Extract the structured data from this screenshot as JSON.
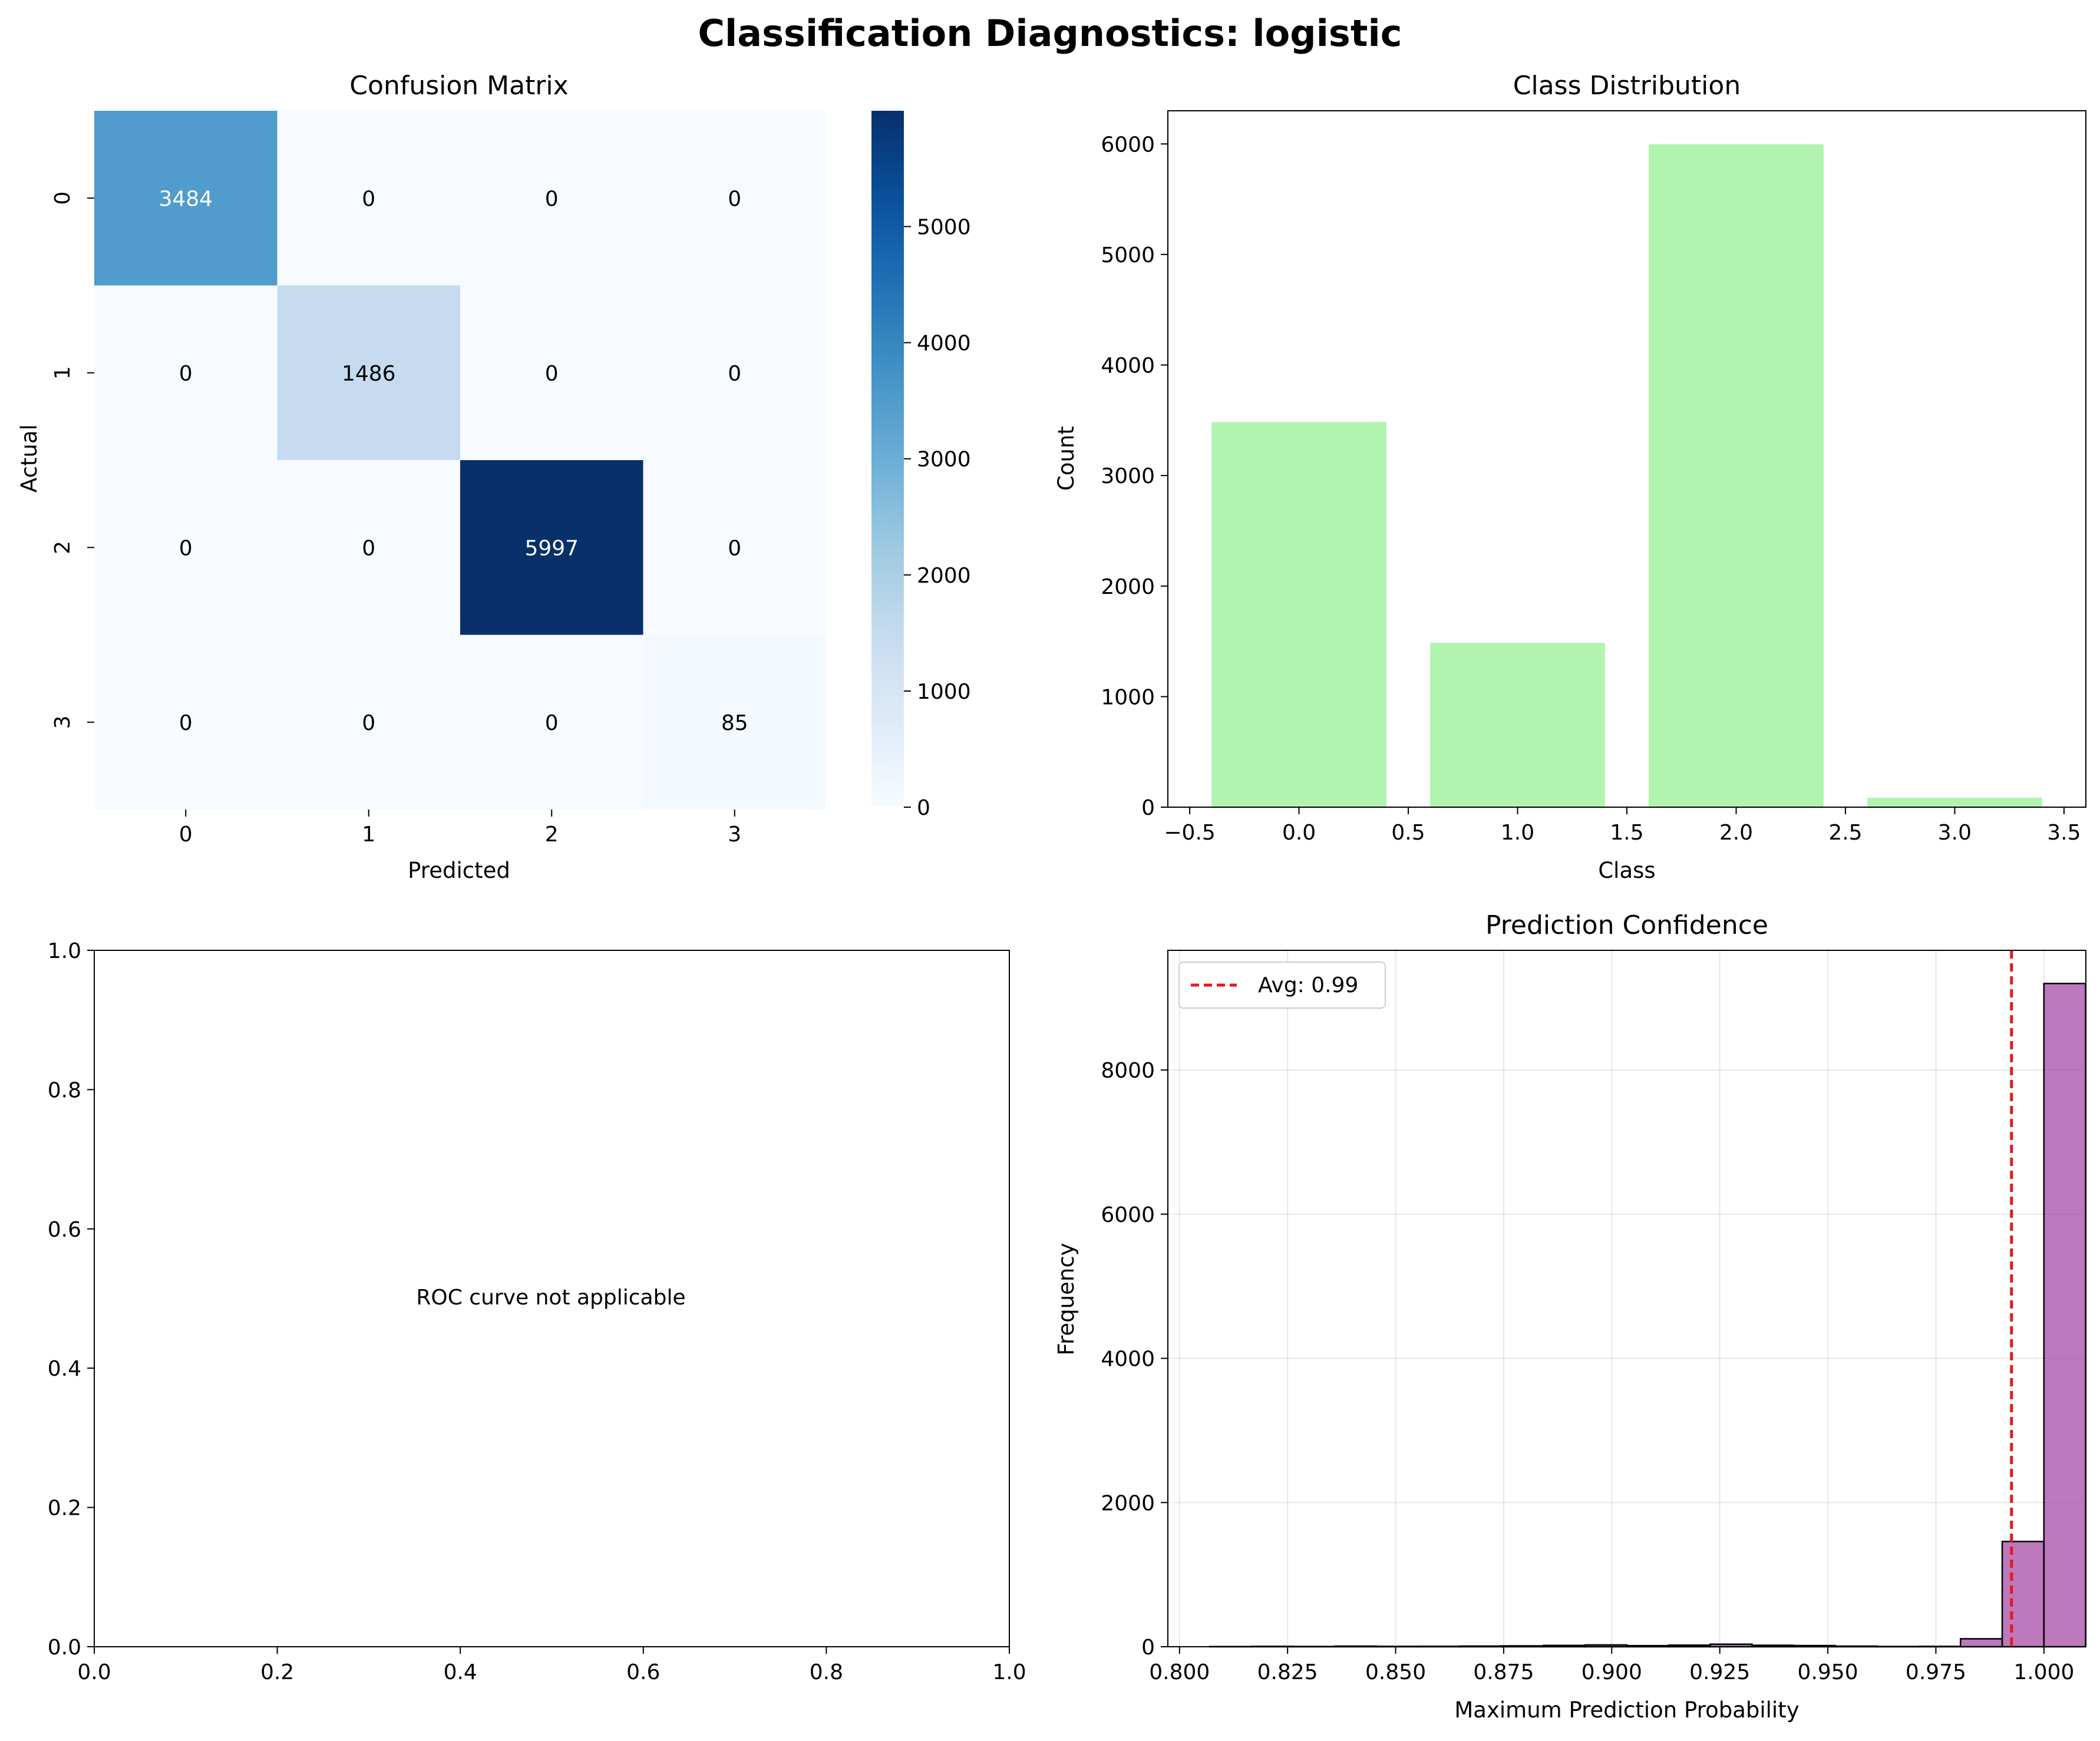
{
  "figure": {
    "title": "Classification Diagnostics: logistic"
  },
  "chart_data": [
    {
      "type": "heatmap",
      "title": "Confusion Matrix",
      "xlabel": "Predicted",
      "ylabel": "Actual",
      "x_categories": [
        "0",
        "1",
        "2",
        "3"
      ],
      "y_categories": [
        "0",
        "1",
        "2",
        "3"
      ],
      "values": [
        [
          3484,
          0,
          0,
          0
        ],
        [
          0,
          1486,
          0,
          0
        ],
        [
          0,
          0,
          5997,
          0
        ],
        [
          0,
          0,
          0,
          85
        ]
      ],
      "colormap": "Blues",
      "colorbar": {
        "range": [
          0,
          5997
        ],
        "ticks": [
          0,
          1000,
          2000,
          3000,
          4000,
          5000
        ],
        "tick_labels": [
          "0",
          "1000",
          "2000",
          "3000",
          "4000",
          "5000"
        ]
      }
    },
    {
      "type": "bar",
      "title": "Class Distribution",
      "xlabel": "Class",
      "ylabel": "Count",
      "x": [
        0,
        1,
        2,
        3
      ],
      "values": [
        3484,
        1486,
        5997,
        85
      ],
      "bar_width": 0.8,
      "color": "#b0f4b0",
      "xlim": [
        -0.6,
        3.6
      ],
      "ylim": [
        0,
        6300
      ],
      "xticks": [
        -0.5,
        0.0,
        0.5,
        1.0,
        1.5,
        2.0,
        2.5,
        3.0,
        3.5
      ],
      "xtick_labels": [
        "−0.5",
        "0.0",
        "0.5",
        "1.0",
        "1.5",
        "2.0",
        "2.5",
        "3.0",
        "3.5"
      ],
      "yticks": [
        0,
        1000,
        2000,
        3000,
        4000,
        5000,
        6000
      ],
      "ytick_labels": [
        "0",
        "1000",
        "2000",
        "3000",
        "4000",
        "5000",
        "6000"
      ]
    },
    {
      "type": "line",
      "title": "",
      "message": "ROC curve not applicable",
      "xlim": [
        0,
        1
      ],
      "ylim": [
        0,
        1
      ],
      "xticks": [
        0,
        0.2,
        0.4,
        0.6,
        0.8,
        1.0
      ],
      "xtick_labels": [
        "0.0",
        "0.2",
        "0.4",
        "0.6",
        "0.8",
        "1.0"
      ],
      "yticks": [
        0,
        0.2,
        0.4,
        0.6,
        0.8,
        1.0
      ],
      "ytick_labels": [
        "0.0",
        "0.2",
        "0.4",
        "0.6",
        "0.8",
        "1.0"
      ],
      "series": []
    },
    {
      "type": "bar",
      "title": "Prediction Confidence",
      "xlabel": "Maximum Prediction Probability",
      "ylabel": "Frequency",
      "histogram": true,
      "bin_start": 0.807,
      "bin_width": 0.00965,
      "values": [
        2,
        5,
        3,
        8,
        5,
        6,
        9,
        12,
        18,
        25,
        15,
        22,
        35,
        20,
        16,
        8,
        3,
        5,
        110,
        1460,
        9200
      ],
      "color": "#a64ca6",
      "edgecolor": "#000000",
      "mean_line": {
        "x": 0.9925,
        "label": "Avg: 0.99",
        "color": "#e41a1c"
      },
      "legend_position": "upper-left",
      "grid": true,
      "xlim": [
        0.7973,
        1.0097
      ],
      "ylim": [
        0,
        9660
      ],
      "xticks": [
        0.8,
        0.825,
        0.85,
        0.875,
        0.9,
        0.925,
        0.95,
        0.975,
        1.0
      ],
      "xtick_labels": [
        "0.800",
        "0.825",
        "0.850",
        "0.875",
        "0.900",
        "0.925",
        "0.950",
        "0.975",
        "1.000"
      ],
      "yticks": [
        0,
        2000,
        4000,
        6000,
        8000
      ],
      "ytick_labels": [
        "0",
        "2000",
        "4000",
        "6000",
        "8000"
      ]
    }
  ]
}
